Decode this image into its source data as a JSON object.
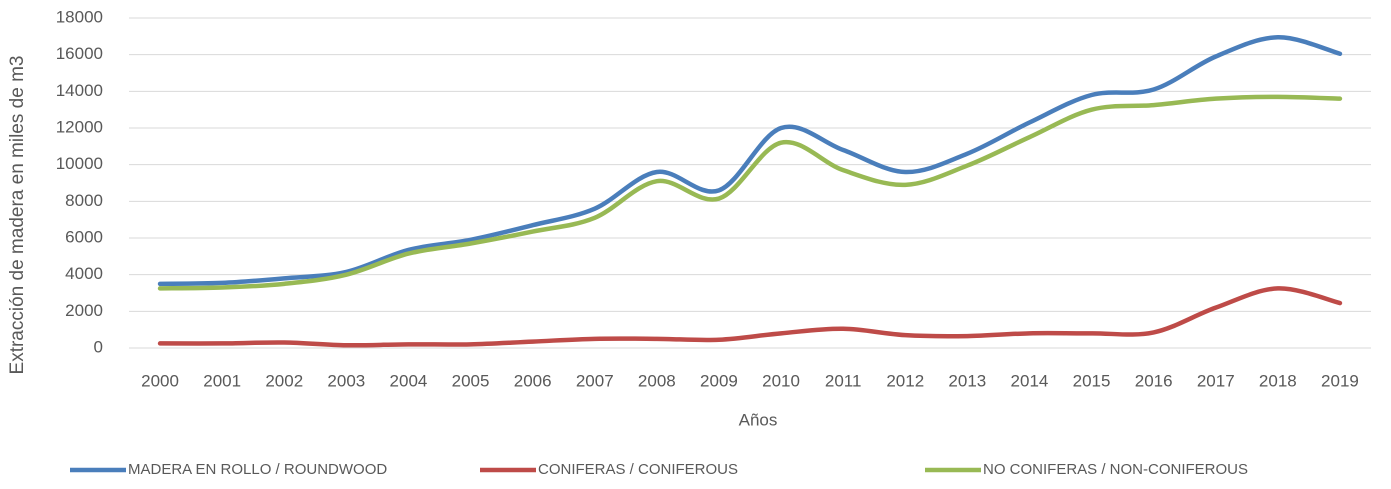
{
  "chart_data": {
    "type": "line",
    "x_label": "Años",
    "y_label": "Extracción de madera en miles de m3",
    "categories": [
      "2000",
      "2001",
      "2002",
      "2003",
      "2004",
      "2005",
      "2006",
      "2007",
      "2008",
      "2009",
      "2010",
      "2011",
      "2012",
      "2013",
      "2014",
      "2015",
      "2016",
      "2017",
      "2018",
      "2019"
    ],
    "series": [
      {
        "name": "MADERA EN ROLLO / ROUNDWOOD",
        "color": "#4a7ebb",
        "values": [
          3500,
          3550,
          3800,
          4150,
          5350,
          5900,
          6700,
          7600,
          9600,
          8600,
          12000,
          10800,
          9600,
          10600,
          12300,
          13800,
          14100,
          15900,
          16950,
          16050
        ]
      },
      {
        "name": "CONIFERAS / CONIFEROUS",
        "color": "#be4b48",
        "values": [
          250,
          250,
          300,
          150,
          200,
          200,
          350,
          500,
          500,
          450,
          800,
          1050,
          700,
          650,
          800,
          800,
          850,
          2200,
          3250,
          2450
        ]
      },
      {
        "name": "NO CONIFERAS / NON-CONIFEROUS",
        "color": "#98b954",
        "values": [
          3250,
          3300,
          3500,
          4000,
          5150,
          5700,
          6350,
          7100,
          9100,
          8150,
          11200,
          9700,
          8900,
          9950,
          11500,
          13000,
          13250,
          13600,
          13700,
          13600
        ]
      }
    ],
    "ylim": [
      0,
      18000
    ],
    "yticks": [
      0,
      2000,
      4000,
      6000,
      8000,
      10000,
      12000,
      14000,
      16000,
      18000
    ],
    "grid": true,
    "smooth": true,
    "legend": "bottom"
  }
}
